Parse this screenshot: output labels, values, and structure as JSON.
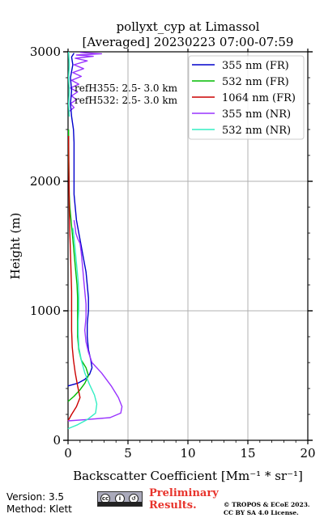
{
  "chart_data": {
    "type": "line",
    "title": "pollyxt_cyp at Limassol",
    "subtitle": "[Averaged] 20230223 07:00-07:59",
    "xlabel": "Backscatter Coefficient [Mm⁻¹ * sr⁻¹]",
    "ylabel": "Height (m)",
    "xlim": [
      0,
      20
    ],
    "ylim": [
      0,
      3000
    ],
    "x_ticks": [
      "0",
      "5",
      "10",
      "15",
      "20"
    ],
    "y_ticks": [
      "0",
      "1000",
      "2000",
      "3000"
    ],
    "grid": true,
    "legend_position": "top-right",
    "annotations": [
      "refH355:  2.5- 3.0 km",
      "refH532:  2.5- 3.0 km"
    ],
    "series": [
      {
        "name": "355 nm (FR)",
        "color": "#0000cc",
        "points": [
          [
            0,
            420
          ],
          [
            0.8,
            440
          ],
          [
            1.4,
            470
          ],
          [
            1.8,
            510
          ],
          [
            2.0,
            560
          ],
          [
            1.9,
            620
          ],
          [
            1.7,
            700
          ],
          [
            1.6,
            800
          ],
          [
            1.6,
            900
          ],
          [
            1.7,
            1000
          ],
          [
            1.7,
            1100
          ],
          [
            1.6,
            1200
          ],
          [
            1.5,
            1300
          ],
          [
            1.3,
            1400
          ],
          [
            1.1,
            1500
          ],
          [
            0.9,
            1600
          ],
          [
            0.7,
            1700
          ],
          [
            0.6,
            1800
          ],
          [
            0.5,
            1900
          ],
          [
            0.5,
            2000
          ],
          [
            0.5,
            2100
          ],
          [
            0.5,
            2200
          ],
          [
            0.5,
            2300
          ],
          [
            0.45,
            2400
          ],
          [
            0.3,
            2500
          ]
        ]
      },
      {
        "name": "532 nm (FR)",
        "color": "#00bb00",
        "points": [
          [
            0,
            300
          ],
          [
            0.5,
            340
          ],
          [
            1.0,
            390
          ],
          [
            1.4,
            440
          ],
          [
            1.7,
            500
          ],
          [
            1.5,
            560
          ],
          [
            1.1,
            620
          ],
          [
            0.9,
            700
          ],
          [
            0.8,
            800
          ],
          [
            0.8,
            900
          ],
          [
            0.8,
            1000
          ],
          [
            0.8,
            1100
          ],
          [
            0.75,
            1200
          ],
          [
            0.65,
            1300
          ],
          [
            0.55,
            1400
          ],
          [
            0.45,
            1500
          ],
          [
            0.35,
            1600
          ],
          [
            0.25,
            1700
          ],
          [
            0.15,
            1800
          ],
          [
            0.1,
            1900
          ],
          [
            0.08,
            2000
          ],
          [
            0.05,
            2200
          ],
          [
            0.05,
            2400
          ]
        ]
      },
      {
        "name": "1064 nm (FR)",
        "color": "#cc0000",
        "points": [
          [
            0,
            150
          ],
          [
            0.3,
            200
          ],
          [
            0.7,
            260
          ],
          [
            1.0,
            330
          ],
          [
            0.8,
            420
          ],
          [
            0.6,
            520
          ],
          [
            0.45,
            620
          ],
          [
            0.35,
            720
          ],
          [
            0.3,
            850
          ],
          [
            0.3,
            1000
          ],
          [
            0.3,
            1150
          ],
          [
            0.25,
            1300
          ],
          [
            0.2,
            1450
          ],
          [
            0.15,
            1600
          ],
          [
            0.1,
            1800
          ],
          [
            0.08,
            2000
          ],
          [
            0.06,
            2200
          ],
          [
            0.05,
            2350
          ]
        ]
      },
      {
        "name": "355 nm (NR)",
        "color": "#9933ff",
        "points": [
          [
            0,
            150
          ],
          [
            1.5,
            160
          ],
          [
            3.5,
            175
          ],
          [
            4.4,
            210
          ],
          [
            4.5,
            260
          ],
          [
            4.2,
            330
          ],
          [
            3.6,
            420
          ],
          [
            2.8,
            520
          ],
          [
            2.0,
            600
          ],
          [
            1.7,
            680
          ],
          [
            1.5,
            760
          ],
          [
            1.4,
            850
          ],
          [
            1.5,
            950
          ],
          [
            1.5,
            1050
          ],
          [
            1.4,
            1150
          ],
          [
            1.3,
            1250
          ],
          [
            1.2,
            1350
          ],
          [
            1.1,
            1450
          ],
          [
            1.0,
            1520
          ],
          [
            0.8,
            1560
          ],
          [
            0.65,
            1600
          ],
          [
            0.6,
            1640
          ],
          [
            0.5,
            1700
          ]
        ]
      },
      {
        "name": "532 nm (NR)",
        "color": "#33eec3",
        "points": [
          [
            0,
            90
          ],
          [
            0.8,
            120
          ],
          [
            1.6,
            160
          ],
          [
            2.3,
            210
          ],
          [
            2.4,
            280
          ],
          [
            2.2,
            350
          ],
          [
            1.8,
            430
          ],
          [
            1.4,
            520
          ],
          [
            1.1,
            620
          ],
          [
            0.9,
            720
          ],
          [
            0.85,
            820
          ],
          [
            0.85,
            920
          ],
          [
            0.9,
            1020
          ],
          [
            0.9,
            1120
          ],
          [
            0.85,
            1220
          ],
          [
            0.75,
            1320
          ],
          [
            0.65,
            1420
          ],
          [
            0.55,
            1520
          ],
          [
            0.45,
            1600
          ],
          [
            0.4,
            1640
          ]
        ]
      },
      {
        "name": "",
        "color": "#9933ff",
        "points": [
          [
            0.1,
            2540
          ],
          [
            0.5,
            2570
          ],
          [
            0.2,
            2600
          ],
          [
            0.7,
            2630
          ],
          [
            0.3,
            2660
          ],
          [
            0.8,
            2690
          ],
          [
            0.2,
            2720
          ],
          [
            0.9,
            2750
          ],
          [
            0.3,
            2780
          ],
          [
            1.1,
            2810
          ],
          [
            0.4,
            2840
          ],
          [
            1.3,
            2870
          ],
          [
            0.5,
            2900
          ],
          [
            1.6,
            2930
          ],
          [
            0.6,
            2950
          ],
          [
            2.1,
            2965
          ],
          [
            0.7,
            2975
          ],
          [
            2.8,
            2985
          ],
          [
            1.0,
            2995
          ]
        ]
      },
      {
        "name": "",
        "color": "#0000cc",
        "points": [
          [
            0.3,
            2500
          ],
          [
            0.2,
            2600
          ],
          [
            0.3,
            2700
          ],
          [
            0.2,
            2800
          ],
          [
            0.4,
            2900
          ],
          [
            0.3,
            2960
          ],
          [
            0.5,
            2990
          ]
        ]
      },
      {
        "name": "",
        "color": "#33eec3",
        "points": [
          [
            0.1,
            2500
          ],
          [
            0.05,
            2600
          ],
          [
            0.1,
            2700
          ],
          [
            0.05,
            2800
          ],
          [
            0.1,
            2900
          ],
          [
            0.05,
            3000
          ]
        ]
      }
    ]
  },
  "footer": {
    "version": "Version: 3.5",
    "method": "Method: Klett",
    "preliminary_line1": "Preliminary",
    "preliminary_line2": "Results.",
    "copyright_line1": "© TROPOS & ECoE 2023.",
    "copyright_line2": "CC BY SA 4.0 License."
  }
}
